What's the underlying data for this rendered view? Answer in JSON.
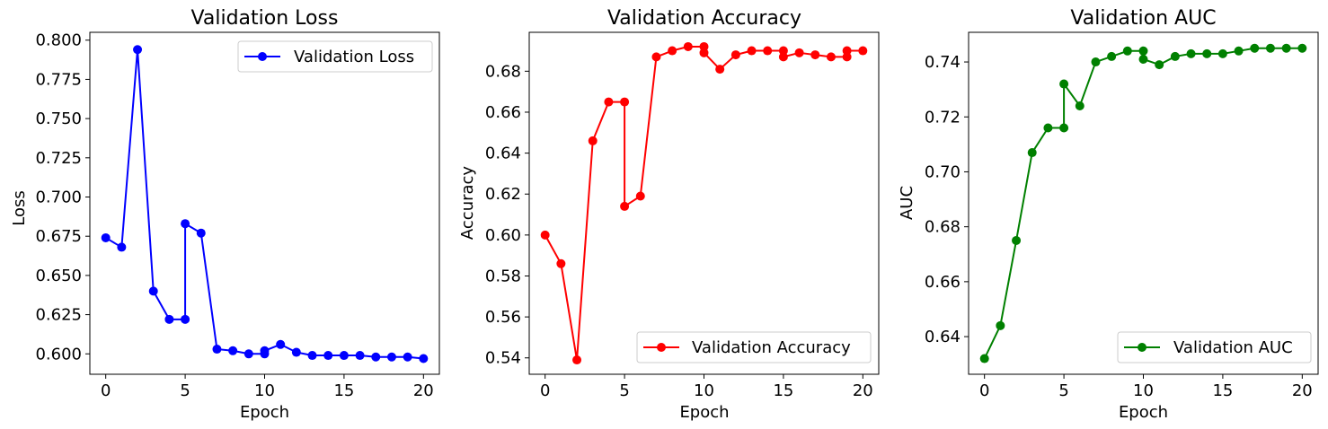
{
  "chart_data": [
    {
      "type": "line",
      "title": "Validation Loss",
      "xlabel": "Epoch",
      "ylabel": "Loss",
      "xlim": [
        -1,
        21
      ],
      "ylim": [
        0.587,
        0.805
      ],
      "xticks": [
        0,
        5,
        10,
        15,
        20
      ],
      "yticks": [
        0.6,
        0.625,
        0.65,
        0.675,
        0.7,
        0.725,
        0.75,
        0.775,
        0.8
      ],
      "ytick_decimals": 3,
      "grid": false,
      "legend_position": "upper-right",
      "series": [
        {
          "name": "Validation Loss",
          "color": "#0000ff",
          "x": [
            0,
            1,
            2,
            3,
            4,
            5,
            5,
            6,
            7,
            8,
            9,
            10,
            10,
            11,
            12,
            13,
            14,
            15,
            16,
            17,
            18,
            19,
            20
          ],
          "y": [
            0.674,
            0.668,
            0.794,
            0.64,
            0.622,
            0.622,
            0.683,
            0.677,
            0.603,
            0.602,
            0.6,
            0.6,
            0.602,
            0.606,
            0.601,
            0.599,
            0.599,
            0.599,
            0.599,
            0.598,
            0.598,
            0.598,
            0.597
          ]
        }
      ]
    },
    {
      "type": "line",
      "title": "Validation Accuracy",
      "xlabel": "Epoch",
      "ylabel": "Accuracy",
      "xlim": [
        -1,
        21
      ],
      "ylim": [
        0.532,
        0.699
      ],
      "xticks": [
        0,
        5,
        10,
        15,
        20
      ],
      "yticks": [
        0.54,
        0.56,
        0.58,
        0.6,
        0.62,
        0.64,
        0.66,
        0.68
      ],
      "ytick_decimals": 2,
      "grid": false,
      "legend_position": "lower-right",
      "series": [
        {
          "name": "Validation Accuracy",
          "color": "#ff0000",
          "x": [
            0,
            1,
            2,
            3,
            4,
            5,
            5,
            6,
            7,
            8,
            9,
            10,
            10,
            11,
            12,
            13,
            14,
            15,
            15,
            16,
            17,
            18,
            19,
            19,
            20
          ],
          "y": [
            0.6,
            0.586,
            0.539,
            0.646,
            0.665,
            0.665,
            0.614,
            0.619,
            0.687,
            0.69,
            0.692,
            0.692,
            0.689,
            0.681,
            0.688,
            0.69,
            0.69,
            0.69,
            0.687,
            0.689,
            0.688,
            0.687,
            0.687,
            0.69,
            0.69
          ]
        }
      ]
    },
    {
      "type": "line",
      "title": "Validation AUC",
      "xlabel": "Epoch",
      "ylabel": "AUC",
      "xlim": [
        -1,
        21
      ],
      "ylim": [
        0.6263,
        0.7508
      ],
      "xticks": [
        0,
        5,
        10,
        15,
        20
      ],
      "yticks": [
        0.64,
        0.66,
        0.68,
        0.7,
        0.72,
        0.74
      ],
      "ytick_decimals": 2,
      "grid": false,
      "legend_position": "lower-right",
      "series": [
        {
          "name": "Validation AUC",
          "color": "#008000",
          "x": [
            0,
            1,
            2,
            3,
            4,
            5,
            5,
            6,
            7,
            8,
            9,
            10,
            10,
            11,
            12,
            13,
            14,
            15,
            16,
            17,
            18,
            19,
            20
          ],
          "y": [
            0.632,
            0.644,
            0.675,
            0.707,
            0.716,
            0.716,
            0.732,
            0.724,
            0.74,
            0.742,
            0.744,
            0.744,
            0.741,
            0.739,
            0.742,
            0.743,
            0.743,
            0.743,
            0.744,
            0.745,
            0.745,
            0.745,
            0.745
          ]
        }
      ]
    }
  ]
}
